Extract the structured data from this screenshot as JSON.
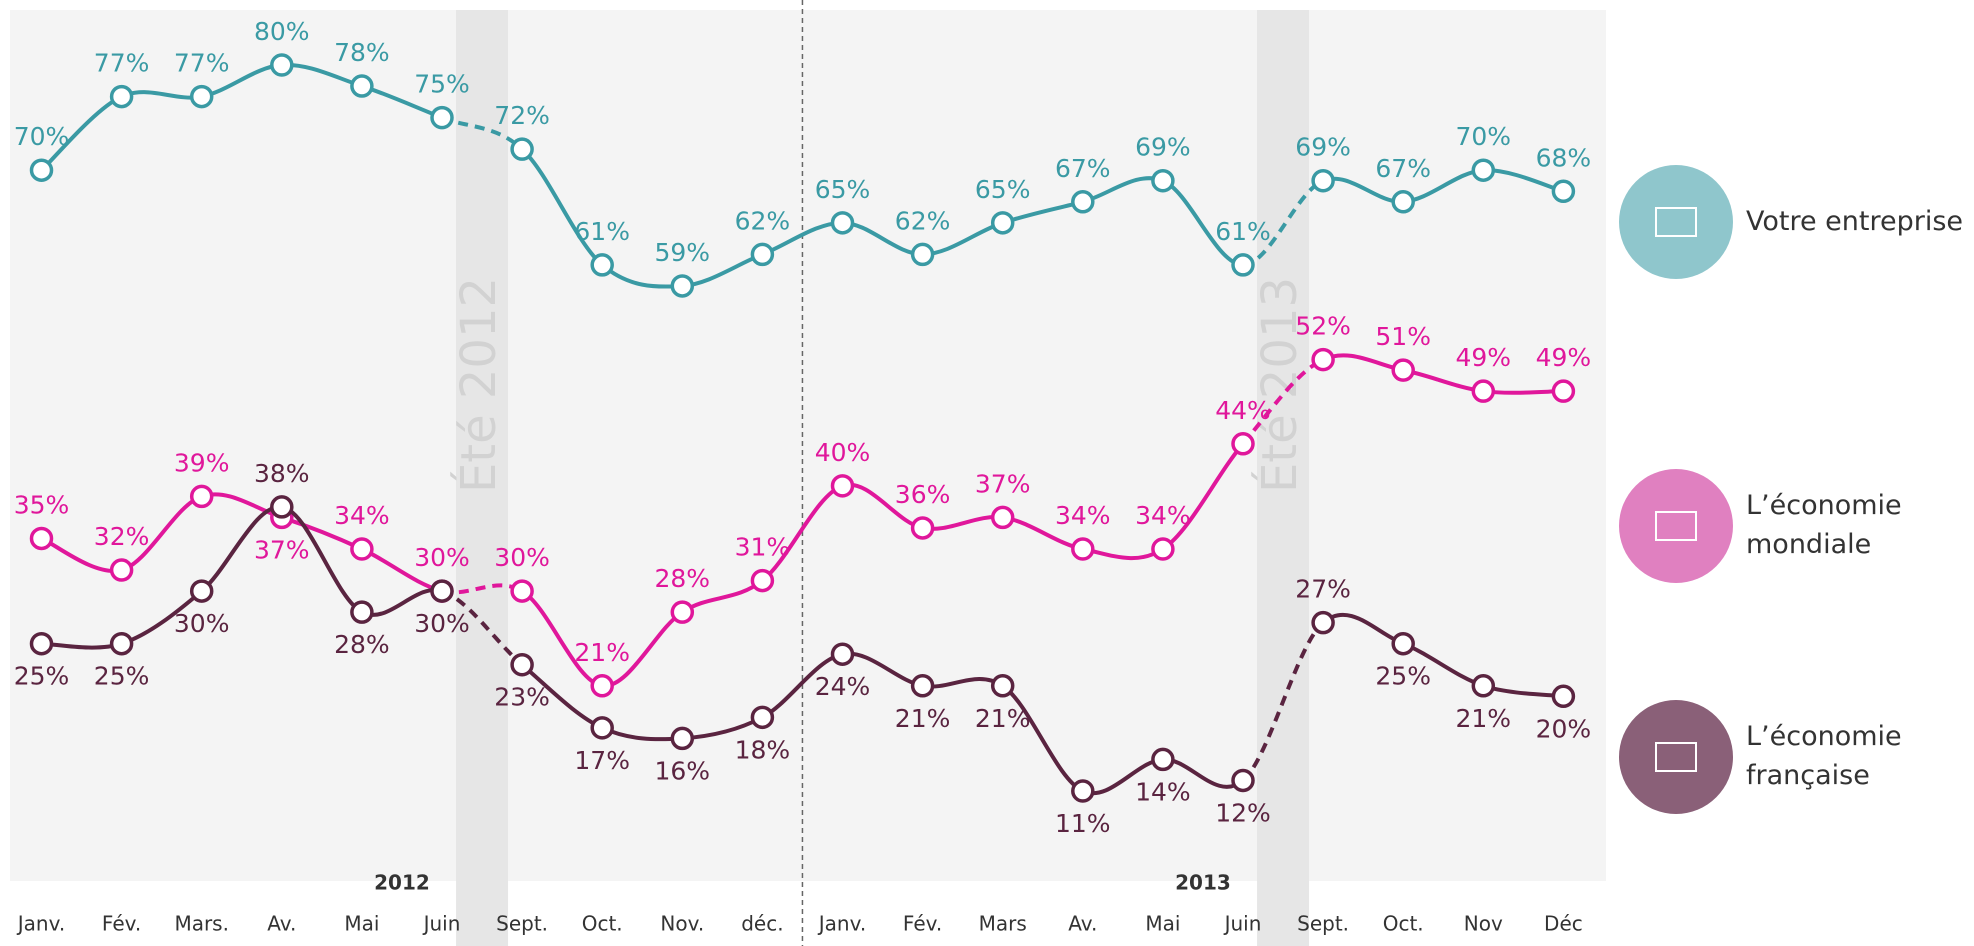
{
  "chart_data": {
    "type": "line",
    "categories": [
      "Janv.",
      "Fév.",
      "Mars.",
      "Av.",
      "Mai",
      "Juin",
      "Sept.",
      "Oct.",
      "Nov.",
      "déc.",
      "Janv.",
      "Fév.",
      "Mars",
      "Av.",
      "Mai",
      "Juin",
      "Sept.",
      "Oct.",
      "Nov",
      "Déc"
    ],
    "breaks": [
      {
        "year": "2012",
        "summer": "Été 2012",
        "after": 5
      },
      {
        "year": "2013",
        "summer": "Été 2013",
        "after": 15
      }
    ],
    "series": [
      {
        "name": "Votre entreprise",
        "color": "#3a9aa4",
        "icon_color": "#8fc6cc",
        "values": [
          70,
          77,
          77,
          80,
          78,
          75,
          72,
          61,
          59,
          62,
          65,
          62,
          65,
          67,
          69,
          61,
          69,
          67,
          70,
          68
        ],
        "value_labels": [
          "70%",
          "77%",
          "77%",
          "80%",
          "78%",
          "75%",
          "72%",
          "61%",
          "59%",
          "62%",
          "65%",
          "62%",
          "65%",
          "67%",
          "69%",
          "61%",
          "69%",
          "67%",
          "70%",
          "68%"
        ]
      },
      {
        "name": "L’économie mondiale",
        "color": "#e0179b",
        "icon_color": "#e080c0",
        "values": [
          35,
          32,
          39,
          37,
          34,
          30,
          30,
          21,
          28,
          31,
          40,
          36,
          37,
          34,
          34,
          44,
          52,
          51,
          49,
          49
        ],
        "value_labels": [
          "35%",
          "32%",
          "39%",
          "37%",
          "34%",
          "30%",
          "30%",
          "21%",
          "28%",
          "31%",
          "40%",
          "36%",
          "37%",
          "34%",
          "34%",
          "44%",
          "52%",
          "51%",
          "49%",
          "49%"
        ]
      },
      {
        "name": "L’économie française",
        "color": "#5a2440",
        "icon_color": "#8a6078",
        "values": [
          25,
          25,
          30,
          38,
          28,
          30,
          23,
          17,
          16,
          18,
          24,
          21,
          21,
          11,
          14,
          12,
          27,
          25,
          21,
          20
        ],
        "value_labels": [
          "25%",
          "25%",
          "30%",
          "38%",
          "28%",
          "30%",
          "23%",
          "17%",
          "16%",
          "18%",
          "24%",
          "21%",
          "21%",
          "11%",
          "14%",
          "12%",
          "27%",
          "25%",
          "21%",
          "20%"
        ]
      }
    ]
  }
}
